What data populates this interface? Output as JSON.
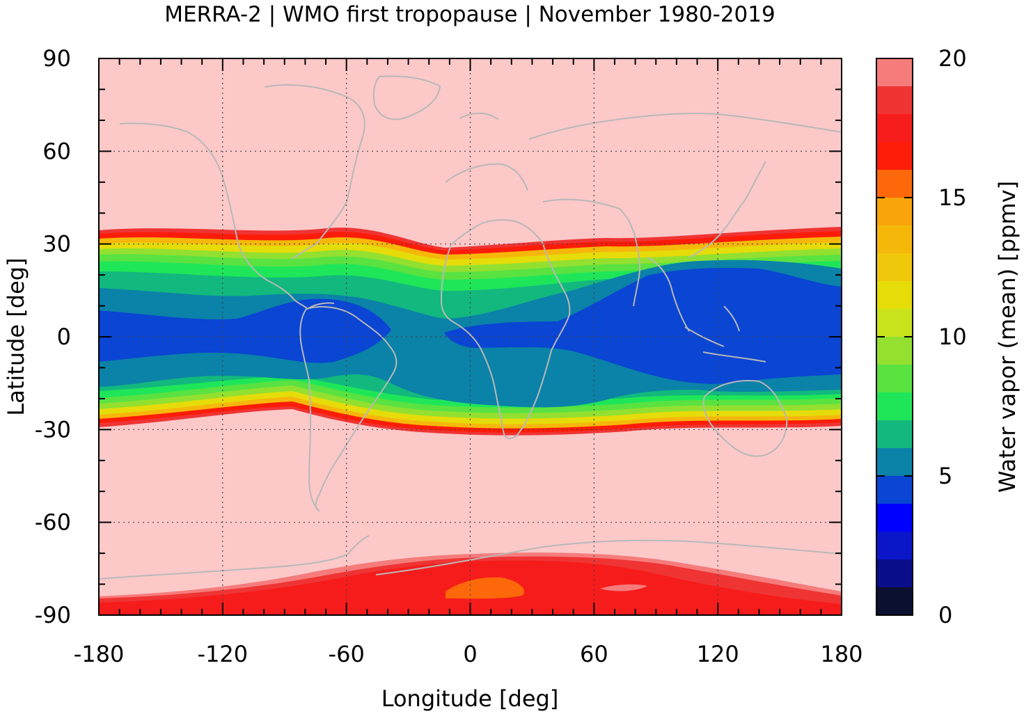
{
  "chart_data": {
    "type": "heatmap",
    "title": "MERRA-2 | WMO first tropopause | November 1980-2019",
    "xlabel": "Longitude [deg]",
    "ylabel": "Latitude [deg]",
    "colorbar_label": "Water vapor (mean) [ppmv]",
    "xlim": [
      -180,
      180
    ],
    "ylim": [
      -90,
      90
    ],
    "grid": true,
    "x_ticks": [
      -180,
      -120,
      -60,
      0,
      60,
      120,
      180
    ],
    "x_tick_labels": [
      "-180",
      "-120",
      "-60",
      "0",
      "60",
      "120",
      "180"
    ],
    "y_ticks": [
      90,
      60,
      30,
      0,
      -30,
      -60,
      -90
    ],
    "y_tick_labels": [
      "90",
      "60",
      "30",
      "0",
      "-30",
      "-60",
      "-90"
    ],
    "colorbar_range": [
      0,
      20
    ],
    "colorbar_ticks": [
      0,
      5,
      10,
      15,
      20
    ],
    "colorbar_tick_labels": [
      "0",
      "5",
      "10",
      "15",
      "20"
    ],
    "colorbar_levels": [
      {
        "from": 0,
        "to": 1,
        "color": "#0c1030"
      },
      {
        "from": 1,
        "to": 2,
        "color": "#0a0d8a"
      },
      {
        "from": 2,
        "to": 3,
        "color": "#0a16c8"
      },
      {
        "from": 3,
        "to": 4,
        "color": "#0000ff"
      },
      {
        "from": 4,
        "to": 5,
        "color": "#0a45d3"
      },
      {
        "from": 5,
        "to": 6,
        "color": "#0b82a8"
      },
      {
        "from": 6,
        "to": 7,
        "color": "#12b87e"
      },
      {
        "from": 7,
        "to": 8,
        "color": "#1fe659"
      },
      {
        "from": 8,
        "to": 9,
        "color": "#5ae241"
      },
      {
        "from": 9,
        "to": 10,
        "color": "#93e030"
      },
      {
        "from": 10,
        "to": 11,
        "color": "#c9e31c"
      },
      {
        "from": 11,
        "to": 12,
        "color": "#e5dc0a"
      },
      {
        "from": 12,
        "to": 13,
        "color": "#f0c80b"
      },
      {
        "from": 13,
        "to": 14,
        "color": "#f6b70b"
      },
      {
        "from": 14,
        "to": 15,
        "color": "#f9a40a"
      },
      {
        "from": 15,
        "to": 16,
        "color": "#fc680a"
      },
      {
        "from": 16,
        "to": 17,
        "color": "#fc1c08"
      },
      {
        "from": 17,
        "to": 18,
        "color": "#f71c1c"
      },
      {
        "from": 18,
        "to": 19,
        "color": "#ef3434"
      },
      {
        "from": 19,
        "to": 20,
        "color": "#f67c7c"
      },
      {
        "from": 20,
        "to": 21,
        "color": "#fcc8c8"
      }
    ]
  }
}
